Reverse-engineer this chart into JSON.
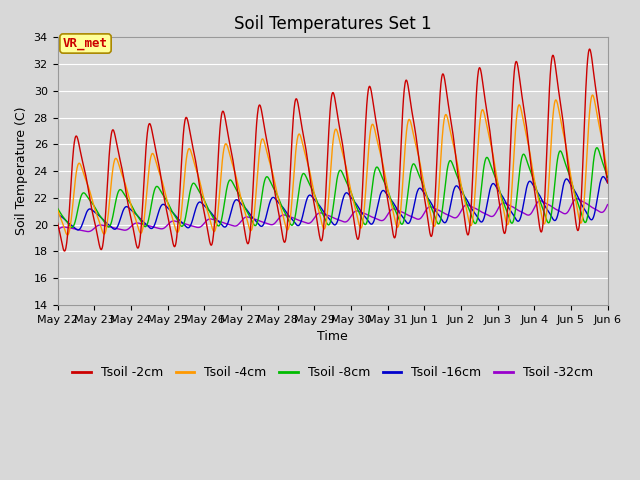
{
  "title": "Soil Temperatures Set 1",
  "xlabel": "Time",
  "ylabel": "Soil Temperature (C)",
  "ylim": [
    14,
    34
  ],
  "yticks": [
    14,
    16,
    18,
    20,
    22,
    24,
    26,
    28,
    30,
    32,
    34
  ],
  "series_colors": [
    "#cc0000",
    "#ff9900",
    "#00bb00",
    "#0000cc",
    "#9900cc"
  ],
  "series_labels": [
    "Tsoil -2cm",
    "Tsoil -4cm",
    "Tsoil -8cm",
    "Tsoil -16cm",
    "Tsoil -32cm"
  ],
  "bg_color": "#d8d8d8",
  "axes_bg_color": "#d8d8d8",
  "annotation_text": "VR_met",
  "annotation_color": "#cc0000",
  "annotation_bg": "#ffff99",
  "annotation_border": "#aa8800",
  "title_fontsize": 12,
  "label_fontsize": 9,
  "tick_fontsize": 8,
  "legend_fontsize": 9,
  "n_points": 1440
}
